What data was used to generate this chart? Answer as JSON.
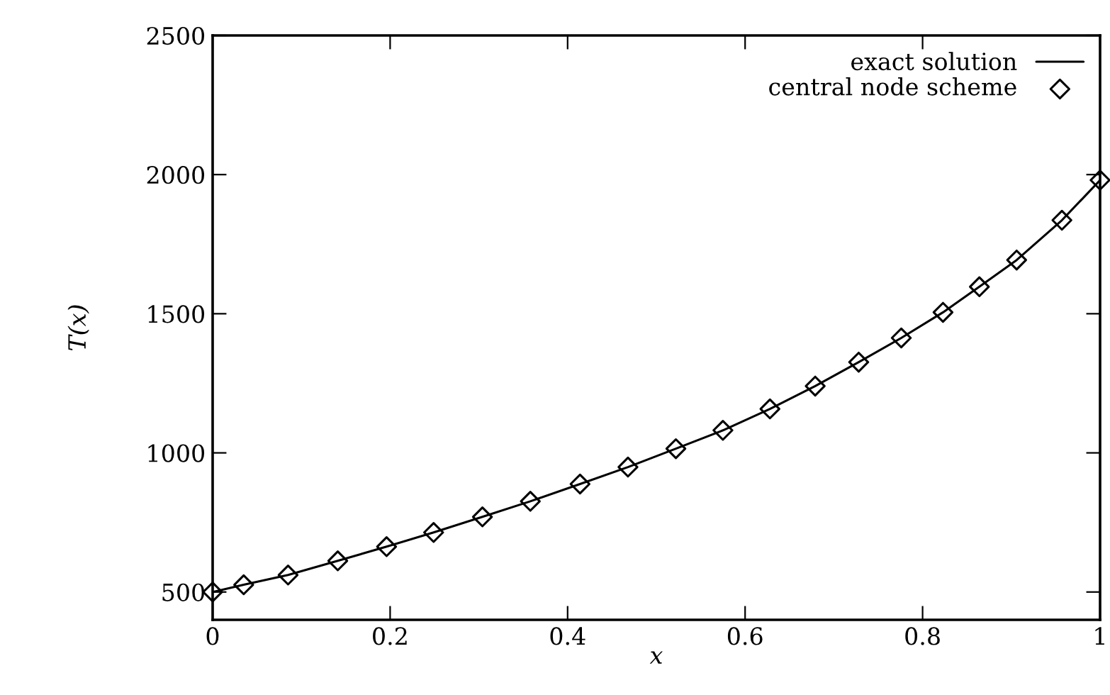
{
  "chart_data": {
    "type": "line",
    "xlabel": "x",
    "ylabel": "T(x)",
    "xlim": [
      0,
      1
    ],
    "xticks": [
      0,
      0.2,
      0.4,
      0.6,
      0.8,
      1
    ],
    "ylim": [
      400,
      2500
    ],
    "yticks": [
      500,
      1000,
      1500,
      2000,
      2500
    ],
    "grid": false,
    "legend": "top right",
    "series": [
      {
        "name": "exact solution",
        "color": "#000000",
        "marker": "none",
        "line_style": "solid",
        "x": [
          0,
          0.035,
          0.085,
          0.141,
          0.196,
          0.249,
          0.304,
          0.358,
          0.414,
          0.468,
          0.522,
          0.575,
          0.628,
          0.679,
          0.728,
          0.776,
          0.823,
          0.864,
          0.906,
          0.957,
          1.0
        ],
        "values": [
          500,
          526,
          561,
          612,
          663,
          714,
          770,
          826,
          888,
          949,
          1015,
          1081,
          1158,
          1240,
          1326,
          1413,
          1505,
          1597,
          1693,
          1836,
          1980
        ]
      },
      {
        "name": "central node scheme",
        "type": "scatter",
        "color": "#000000",
        "marker": "diamond",
        "x": [
          0,
          0.035,
          0.085,
          0.141,
          0.196,
          0.249,
          0.304,
          0.358,
          0.414,
          0.468,
          0.522,
          0.575,
          0.628,
          0.679,
          0.728,
          0.776,
          0.823,
          0.864,
          0.906,
          0.957,
          1.0
        ],
        "values": [
          500,
          526,
          561,
          612,
          663,
          714,
          770,
          826,
          888,
          949,
          1015,
          1081,
          1158,
          1240,
          1326,
          1413,
          1505,
          1597,
          1693,
          1836,
          1980
        ]
      }
    ]
  }
}
